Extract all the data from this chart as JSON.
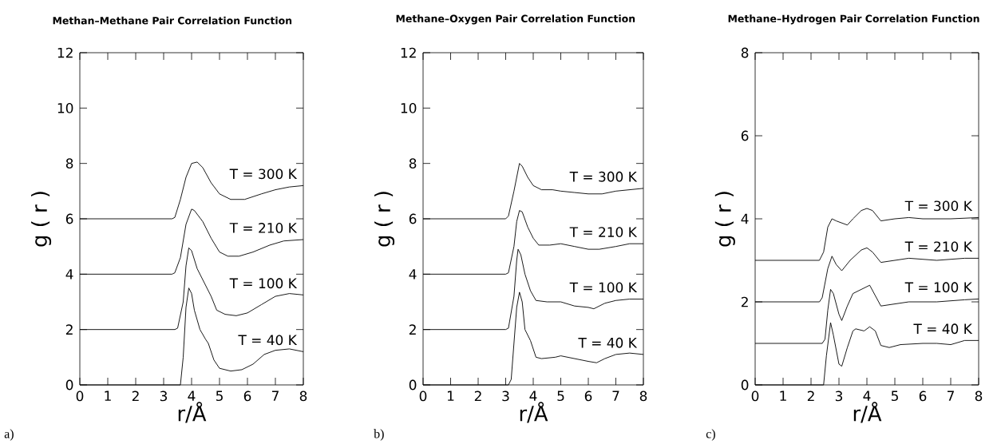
{
  "chart_data": [
    {
      "type": "line",
      "title": "Methan–Methane  Pair Correlation Function",
      "xlabel": "r/Å",
      "ylabel": "g ( r )",
      "annotations": [
        "a)"
      ],
      "legend": "right",
      "xlim": [
        0,
        8
      ],
      "ylim": [
        0,
        12
      ],
      "xticks": [
        0,
        1,
        2,
        3,
        4,
        5,
        6,
        7,
        8
      ],
      "yticks": [
        0,
        2,
        4,
        6,
        8,
        10,
        12
      ],
      "series": [
        {
          "name": "T = 40 K",
          "color": "#000000",
          "x": [
            0,
            3.5,
            3.6,
            3.7,
            3.8,
            3.9,
            4.0,
            4.1,
            4.3,
            4.5,
            4.6,
            4.8,
            5.0,
            5.4,
            5.8,
            6.2,
            6.6,
            7.0,
            7.5,
            8.0
          ],
          "values": [
            0,
            0,
            0.0,
            1.0,
            2.8,
            3.5,
            3.3,
            2.7,
            2.0,
            1.65,
            1.5,
            0.9,
            0.6,
            0.5,
            0.55,
            0.75,
            1.1,
            1.25,
            1.3,
            1.2
          ]
        },
        {
          "name": "T = 100 K",
          "color": "#000000",
          "x": [
            0,
            3.4,
            3.5,
            3.7,
            3.8,
            3.9,
            4.0,
            4.2,
            4.5,
            4.7,
            4.9,
            5.2,
            5.6,
            6.0,
            6.5,
            7.0,
            7.5,
            8.0
          ],
          "values": [
            2,
            2,
            2.05,
            3.0,
            4.3,
            4.95,
            4.85,
            4.2,
            3.6,
            3.2,
            2.7,
            2.55,
            2.5,
            2.6,
            2.9,
            3.2,
            3.3,
            3.25
          ]
        },
        {
          "name": "T = 210 K",
          "color": "#000000",
          "x": [
            0,
            3.3,
            3.4,
            3.6,
            3.8,
            4.0,
            4.1,
            4.4,
            4.7,
            5.0,
            5.3,
            5.7,
            6.2,
            6.8,
            7.3,
            8.0
          ],
          "values": [
            4,
            4,
            4.05,
            4.6,
            5.8,
            6.35,
            6.3,
            5.9,
            5.3,
            4.8,
            4.65,
            4.65,
            4.8,
            5.05,
            5.2,
            5.25
          ]
        },
        {
          "name": "T = 300 K",
          "color": "#000000",
          "x": [
            0,
            3.3,
            3.4,
            3.6,
            3.8,
            4.0,
            4.2,
            4.4,
            4.7,
            5.0,
            5.4,
            5.9,
            6.5,
            7.0,
            7.5,
            8.0
          ],
          "values": [
            6,
            6,
            6.05,
            6.7,
            7.5,
            8.0,
            8.05,
            7.85,
            7.3,
            6.9,
            6.7,
            6.7,
            6.9,
            7.05,
            7.15,
            7.2
          ]
        }
      ]
    },
    {
      "type": "line",
      "title": "Methane–Oxygen Pair Correlation Function",
      "xlabel": "r/Å",
      "ylabel": "g ( r )",
      "annotations": [
        "b)"
      ],
      "legend": "right",
      "xlim": [
        0,
        8
      ],
      "ylim": [
        0,
        12
      ],
      "xticks": [
        0,
        1,
        2,
        3,
        4,
        5,
        6,
        7,
        8
      ],
      "yticks": [
        0,
        2,
        4,
        6,
        8,
        10,
        12
      ],
      "series": [
        {
          "name": "T = 40 K",
          "color": "#000000",
          "x": [
            0,
            3.1,
            3.2,
            3.3,
            3.4,
            3.5,
            3.6,
            3.7,
            3.9,
            4.1,
            4.3,
            4.8,
            5.0,
            5.5,
            6.0,
            6.3,
            6.6,
            7.0,
            7.5,
            8.0
          ],
          "values": [
            0,
            0,
            0.2,
            1.5,
            2.8,
            3.35,
            3.0,
            2.0,
            1.6,
            1.0,
            0.95,
            1.0,
            1.05,
            0.95,
            0.85,
            0.8,
            0.95,
            1.1,
            1.15,
            1.1
          ]
        },
        {
          "name": "T = 100 K",
          "color": "#000000",
          "x": [
            0,
            3.0,
            3.1,
            3.3,
            3.4,
            3.45,
            3.55,
            3.7,
            3.9,
            4.1,
            4.5,
            5.0,
            5.5,
            6.0,
            6.2,
            6.6,
            7.0,
            7.5,
            8.0
          ],
          "values": [
            2,
            2,
            2.05,
            3.2,
            4.5,
            4.9,
            4.7,
            4.0,
            3.4,
            3.05,
            3.0,
            3.0,
            2.85,
            2.8,
            2.75,
            2.95,
            3.05,
            3.1,
            3.1
          ]
        },
        {
          "name": "T = 210 K",
          "color": "#000000",
          "x": [
            0,
            3.0,
            3.1,
            3.3,
            3.4,
            3.5,
            3.6,
            3.8,
            4.0,
            4.2,
            4.6,
            5.0,
            5.5,
            6.0,
            6.4,
            7.0,
            7.5,
            8.0
          ],
          "values": [
            4,
            4,
            4.05,
            5.0,
            5.9,
            6.3,
            6.25,
            5.7,
            5.3,
            5.05,
            5.05,
            5.1,
            5.0,
            4.9,
            4.9,
            5.0,
            5.1,
            5.1
          ]
        },
        {
          "name": "T = 300 K",
          "color": "#000000",
          "x": [
            0,
            3.0,
            3.1,
            3.3,
            3.5,
            3.6,
            3.8,
            4.0,
            4.3,
            4.7,
            5.0,
            5.5,
            6.0,
            6.5,
            7.0,
            7.5,
            8.0
          ],
          "values": [
            6,
            6,
            6.1,
            7.0,
            8.0,
            7.9,
            7.5,
            7.2,
            7.05,
            7.05,
            7.0,
            6.95,
            6.9,
            6.9,
            7.0,
            7.05,
            7.1
          ]
        }
      ]
    },
    {
      "type": "line",
      "title": "Methane–Hydrogen Pair Correlation Function",
      "xlabel": "r/Å",
      "ylabel": "g ( r )",
      "annotations": [
        "c)"
      ],
      "legend": "right",
      "xlim": [
        0,
        8
      ],
      "ylim": [
        0,
        8
      ],
      "xticks": [
        0,
        1,
        2,
        3,
        4,
        5,
        6,
        7,
        8
      ],
      "yticks": [
        0,
        2,
        4,
        6,
        8
      ],
      "series": [
        {
          "name": "T = 40 K",
          "color": "#000000",
          "x": [
            0,
            2.45,
            2.55,
            2.7,
            2.8,
            3.0,
            3.1,
            3.3,
            3.5,
            3.6,
            3.9,
            4.1,
            4.3,
            4.5,
            4.8,
            5.2,
            6.0,
            6.5,
            7.0,
            7.5,
            8.0
          ],
          "values": [
            0,
            0,
            0.7,
            1.5,
            1.2,
            0.5,
            0.45,
            0.9,
            1.3,
            1.35,
            1.3,
            1.4,
            1.3,
            0.95,
            0.9,
            0.97,
            1.0,
            1.0,
            0.97,
            1.07,
            1.07
          ]
        },
        {
          "name": "T = 100 K",
          "color": "#000000",
          "x": [
            0,
            2.4,
            2.5,
            2.6,
            2.7,
            2.8,
            3.0,
            3.1,
            3.3,
            3.5,
            3.8,
            4.1,
            4.3,
            4.5,
            5.0,
            5.5,
            6.5,
            7.5,
            8.0
          ],
          "values": [
            1,
            1,
            1.1,
            1.8,
            2.3,
            2.2,
            1.7,
            1.55,
            1.9,
            2.2,
            2.3,
            2.4,
            2.15,
            1.9,
            1.95,
            2.0,
            2.0,
            2.05,
            2.07
          ]
        },
        {
          "name": "T = 210 K",
          "color": "#000000",
          "x": [
            0,
            2.3,
            2.4,
            2.6,
            2.75,
            2.9,
            3.1,
            3.4,
            3.8,
            4.0,
            4.2,
            4.5,
            5.0,
            5.5,
            6.5,
            7.5,
            8.0
          ],
          "values": [
            2,
            2,
            2.1,
            2.8,
            3.1,
            2.9,
            2.75,
            3.0,
            3.25,
            3.3,
            3.2,
            2.95,
            3.0,
            3.05,
            3.0,
            3.05,
            3.05
          ]
        },
        {
          "name": "T = 300 K",
          "color": "#000000",
          "x": [
            0,
            2.3,
            2.45,
            2.6,
            2.75,
            2.9,
            3.3,
            3.5,
            3.8,
            4.0,
            4.2,
            4.5,
            5.0,
            5.5,
            6.0,
            7.0,
            8.0
          ],
          "values": [
            3,
            3,
            3.2,
            3.8,
            4.0,
            3.95,
            3.85,
            4.0,
            4.2,
            4.25,
            4.2,
            3.95,
            4.0,
            4.03,
            4.0,
            4.0,
            4.03
          ]
        }
      ]
    }
  ]
}
